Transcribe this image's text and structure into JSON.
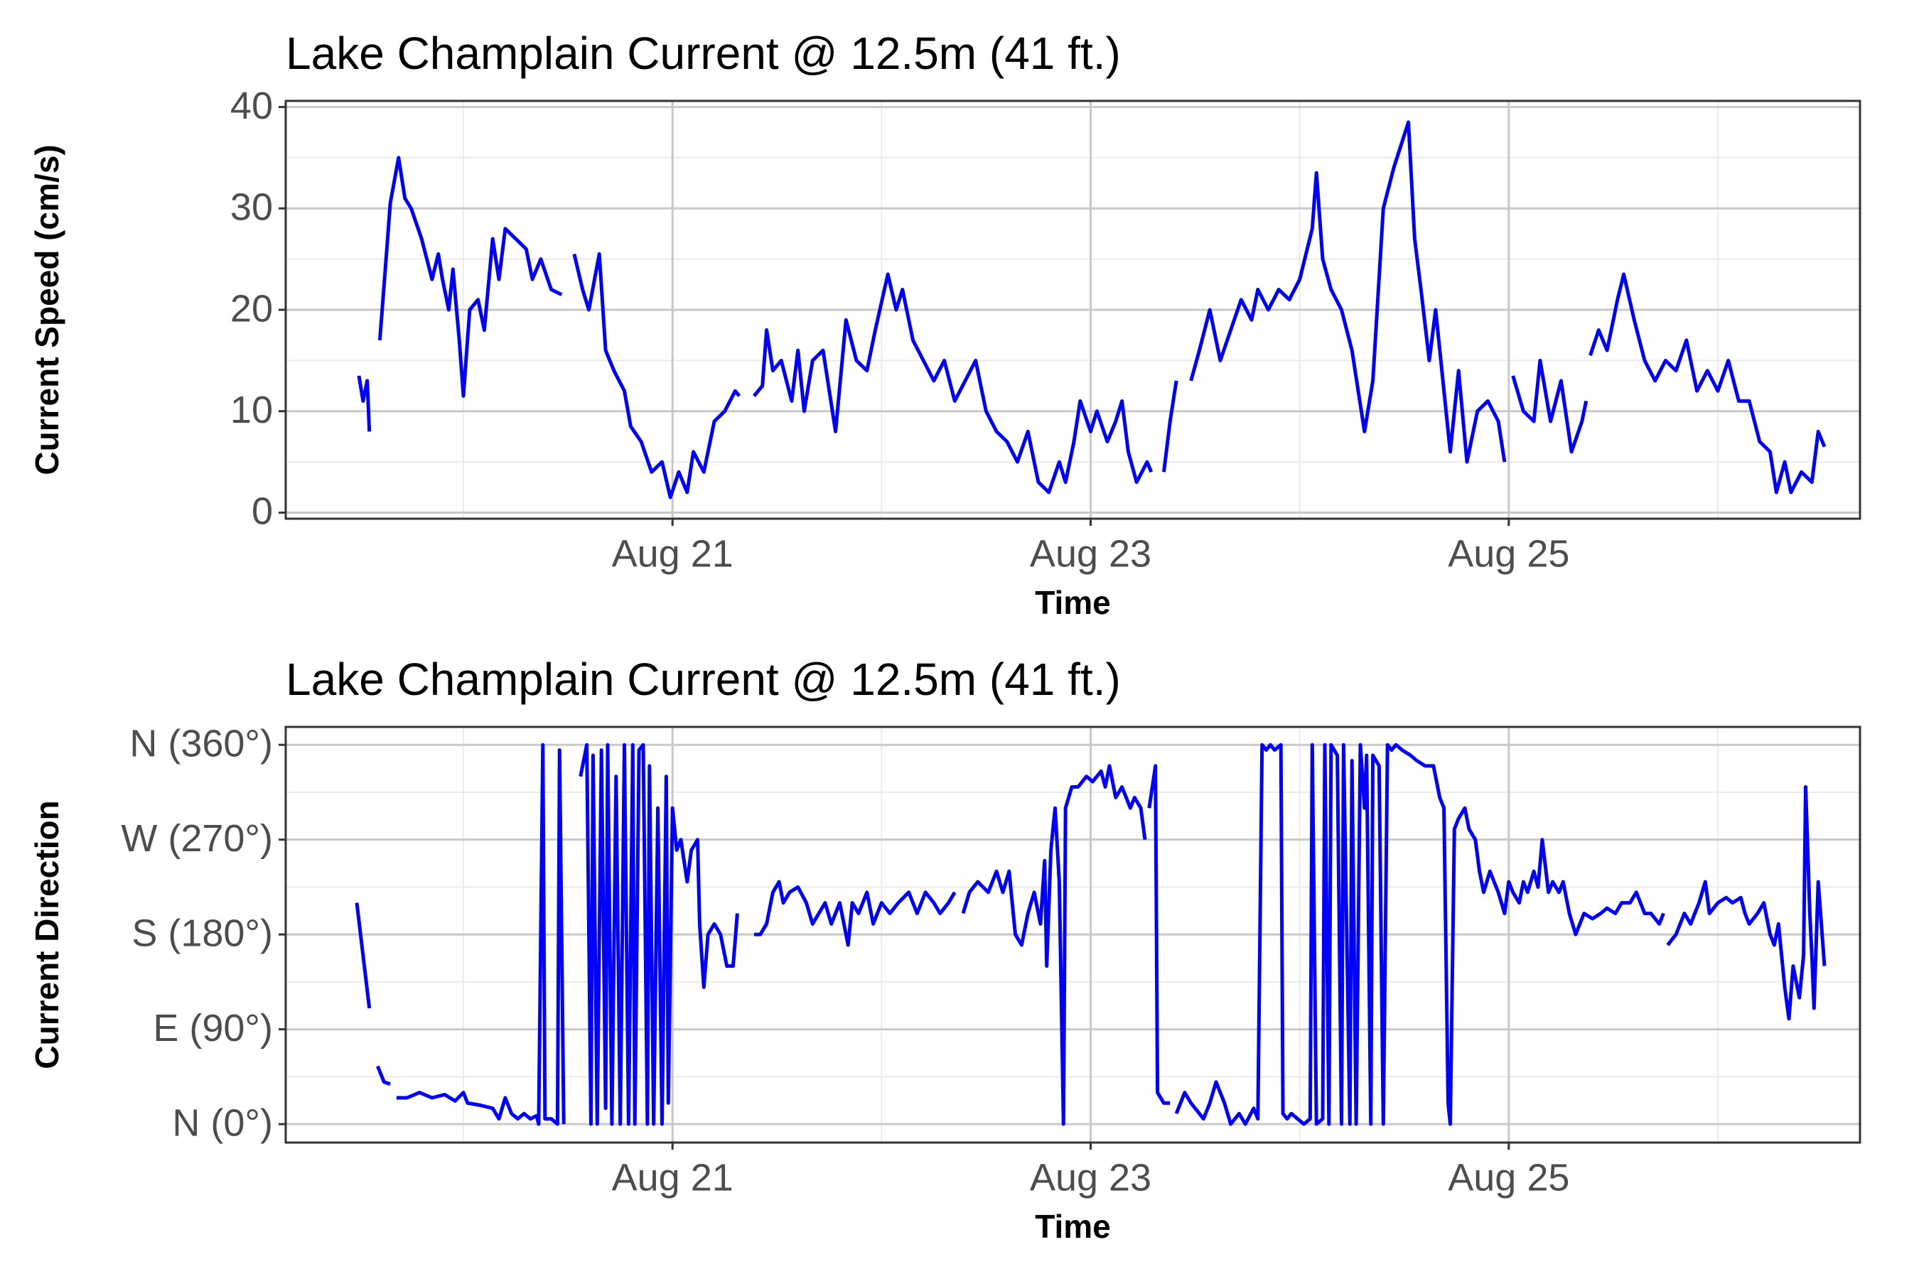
{
  "chart_data": [
    {
      "type": "line",
      "title": "Lake Champlain Current @ 12.5m (41 ft.)",
      "xlabel": "Time",
      "ylabel": "Current Speed (cm/s)",
      "xlim": [
        19.15,
        26.68
      ],
      "xticks": [
        {
          "value": 21,
          "label": "Aug 21"
        },
        {
          "value": 23,
          "label": "Aug 23"
        },
        {
          "value": 25,
          "label": "Aug 25"
        }
      ],
      "xminor": [
        20,
        22,
        24,
        26
      ],
      "ylim": [
        -0.6,
        40.6
      ],
      "yticks": [
        0,
        10,
        20,
        30,
        40
      ],
      "yminor": [
        5,
        15,
        25,
        35
      ],
      "grid": true,
      "x": [
        19.5,
        19.52,
        19.54,
        19.55,
        19.57,
        19.6,
        19.63,
        19.65,
        19.69,
        19.72,
        19.75,
        19.8,
        19.85,
        19.88,
        19.9,
        19.93,
        19.95,
        19.98,
        20.0,
        20.03,
        20.07,
        20.1,
        20.14,
        20.17,
        20.2,
        20.25,
        20.3,
        20.33,
        20.37,
        20.42,
        20.47,
        20.5,
        20.53,
        20.57,
        20.6,
        20.65,
        20.68,
        20.72,
        20.77,
        20.8,
        20.85,
        20.9,
        20.95,
        20.99,
        21.03,
        21.07,
        21.1,
        21.15,
        21.2,
        21.25,
        21.3,
        21.32,
        21.35,
        21.39,
        21.43,
        21.45,
        21.48,
        21.52,
        21.57,
        21.6,
        21.63,
        21.67,
        21.72,
        21.78,
        21.83,
        21.88,
        21.93,
        21.97,
        22.03,
        22.07,
        22.1,
        22.15,
        22.2,
        22.25,
        22.3,
        22.35,
        22.4,
        22.45,
        22.5,
        22.55,
        22.6,
        22.65,
        22.7,
        22.75,
        22.8,
        22.85,
        22.88,
        22.92,
        22.95,
        23.0,
        23.03,
        23.08,
        23.12,
        23.15,
        23.18,
        23.22,
        23.27,
        23.29,
        23.32,
        23.35,
        23.38,
        23.41,
        23.45,
        23.48,
        23.52,
        23.57,
        23.62,
        23.67,
        23.72,
        23.77,
        23.8,
        23.85,
        23.9,
        23.95,
        24.0,
        24.06,
        24.08,
        24.11,
        24.15,
        24.2,
        24.25,
        24.31,
        24.35,
        24.4,
        24.45,
        24.52,
        24.55,
        24.58,
        24.62,
        24.65,
        24.7,
        24.72,
        24.76,
        24.8,
        24.85,
        24.9,
        24.95,
        24.98,
        25.0,
        25.02,
        25.07,
        25.12,
        25.15,
        25.2,
        25.25,
        25.3,
        25.35,
        25.37,
        25.38,
        25.39,
        25.43,
        25.47,
        25.52,
        25.55,
        25.6,
        25.65,
        25.7,
        25.75,
        25.8,
        25.85,
        25.9,
        25.95,
        26.0,
        26.05,
        26.1,
        26.15,
        26.2,
        26.25,
        26.28,
        26.32,
        26.35,
        26.4,
        26.45,
        26.48,
        26.51
      ],
      "series": [
        {
          "name": "Current Speed",
          "color": "#0000ff",
          "values": [
            13.5,
            11,
            13,
            8,
            null,
            17,
            25,
            30.5,
            35,
            31,
            30,
            27,
            23,
            25.5,
            23,
            20,
            24,
            17,
            11.5,
            20,
            21,
            18,
            27,
            23,
            28,
            27,
            26,
            23,
            25,
            22,
            21.5,
            null,
            25.5,
            22,
            20,
            25.5,
            16,
            14,
            12,
            8.5,
            7,
            4,
            5,
            1.5,
            4,
            2,
            6,
            4,
            9,
            10,
            12,
            11.5,
            null,
            11.5,
            12.5,
            18,
            14,
            15,
            11,
            16,
            10,
            15,
            16,
            8,
            19,
            15,
            14,
            18,
            23.5,
            20,
            22,
            17,
            15,
            13,
            15,
            11,
            13,
            15,
            10,
            8,
            7,
            5,
            8,
            3,
            2,
            5,
            3,
            7,
            11,
            8,
            10,
            7,
            9,
            11,
            6,
            3,
            5,
            4,
            null,
            4,
            9,
            13,
            null,
            13,
            16,
            20,
            15,
            18,
            21,
            19,
            22,
            20,
            22,
            21,
            23,
            28,
            33.5,
            25,
            22,
            20,
            16,
            8,
            13,
            30,
            34,
            38.5,
            27,
            22,
            15,
            20,
            10,
            6,
            14,
            5,
            10,
            11,
            9,
            5,
            null,
            13.5,
            10,
            9,
            15,
            9,
            13,
            6,
            9,
            11,
            null,
            15.5,
            18,
            16,
            21,
            23.5,
            19,
            15,
            13,
            15,
            14,
            17,
            12,
            14,
            12,
            15,
            11,
            11,
            7,
            6,
            2,
            5,
            2,
            4,
            3,
            8,
            6.5
          ]
        }
      ]
    },
    {
      "type": "line",
      "title": "Lake Champlain Current @ 12.5m (41 ft.)",
      "xlabel": "Time",
      "ylabel": "Current Direction",
      "xlim": [
        19.15,
        26.68
      ],
      "xticks": [
        {
          "value": 21,
          "label": "Aug 21"
        },
        {
          "value": 23,
          "label": "Aug 23"
        },
        {
          "value": 25,
          "label": "Aug 25"
        }
      ],
      "xminor": [
        20,
        22,
        24,
        26
      ],
      "ylim": [
        -17.5,
        377
      ],
      "yticks": [
        {
          "value": 0,
          "label": "N (0°)"
        },
        {
          "value": 90,
          "label": "E (90°)"
        },
        {
          "value": 180,
          "label": "S (180°)"
        },
        {
          "value": 270,
          "label": "W (270°)"
        },
        {
          "value": 360,
          "label": "N (360°)"
        }
      ],
      "yminor": [
        45,
        135,
        225,
        315
      ],
      "grid": true,
      "x": [
        19.49,
        19.55,
        19.57,
        19.59,
        19.62,
        19.65,
        19.66,
        19.68,
        19.73,
        19.79,
        19.85,
        19.91,
        19.96,
        20.0,
        20.02,
        20.08,
        20.14,
        20.17,
        20.2,
        20.23,
        20.26,
        20.29,
        20.32,
        20.35,
        20.36,
        20.38,
        20.39,
        20.42,
        20.45,
        20.46,
        20.48,
        20.52,
        20.56,
        20.59,
        20.61,
        20.62,
        20.64,
        20.66,
        20.68,
        20.69,
        20.71,
        20.73,
        20.75,
        20.77,
        20.79,
        20.81,
        20.82,
        20.84,
        20.86,
        20.88,
        20.89,
        20.91,
        20.93,
        20.95,
        20.97,
        20.98,
        21.0,
        21.02,
        21.04,
        21.07,
        21.09,
        21.12,
        21.13,
        21.15,
        21.17,
        21.2,
        21.23,
        21.26,
        21.29,
        21.31,
        21.35,
        21.39,
        21.42,
        21.45,
        21.48,
        21.51,
        21.53,
        21.56,
        21.6,
        21.64,
        21.67,
        21.7,
        21.73,
        21.76,
        21.8,
        21.84,
        21.86,
        21.89,
        21.93,
        21.96,
        22.0,
        22.04,
        22.08,
        22.13,
        22.17,
        22.21,
        22.25,
        22.28,
        22.32,
        22.35,
        22.37,
        22.39,
        22.42,
        22.46,
        22.51,
        22.55,
        22.58,
        22.61,
        22.64,
        22.67,
        22.7,
        22.73,
        22.76,
        22.78,
        22.79,
        22.81,
        22.83,
        22.85,
        22.87,
        22.88,
        22.91,
        22.94,
        22.98,
        23.01,
        23.05,
        23.07,
        23.09,
        23.12,
        23.15,
        23.19,
        23.21,
        23.24,
        23.26,
        23.27,
        23.28,
        23.31,
        23.32,
        23.35,
        23.38,
        23.4,
        23.41,
        23.45,
        23.48,
        23.52,
        23.54,
        23.57,
        23.6,
        23.64,
        23.67,
        23.71,
        23.74,
        23.78,
        23.8,
        23.82,
        23.84,
        23.86,
        23.88,
        23.91,
        23.92,
        23.94,
        23.96,
        23.99,
        24.02,
        24.05,
        24.06,
        24.08,
        24.11,
        24.12,
        24.14,
        24.15,
        24.18,
        24.2,
        24.21,
        24.24,
        24.25,
        24.27,
        24.29,
        24.31,
        24.32,
        24.34,
        24.35,
        24.38,
        24.4,
        24.42,
        24.44,
        24.46,
        24.49,
        24.53,
        24.56,
        24.6,
        24.64,
        24.67,
        24.69,
        24.71,
        24.72,
        24.74,
        24.76,
        24.79,
        24.81,
        24.84,
        24.86,
        24.88,
        24.91,
        24.93,
        24.95,
        24.98,
        25.0,
        25.02,
        25.05,
        25.07,
        25.09,
        25.12,
        25.14,
        25.16,
        25.19,
        25.21,
        25.24,
        25.26,
        25.29,
        25.32,
        25.34,
        25.36,
        25.4,
        25.44,
        25.47,
        25.51,
        25.54,
        25.58,
        25.61,
        25.65,
        25.68,
        25.72,
        25.74,
        25.75,
        25.76,
        25.8,
        25.84,
        25.87,
        25.91,
        25.94,
        25.96,
        26.0,
        26.04,
        26.07,
        26.11,
        26.13,
        26.15,
        26.19,
        26.22,
        26.25,
        26.27,
        26.29,
        26.32,
        26.34,
        26.36,
        26.39,
        26.41,
        26.42,
        26.44,
        26.45,
        26.46,
        26.48,
        26.51
      ],
      "series": [
        {
          "name": "Current Direction",
          "color": "#0000ff",
          "values": [
            210,
            110,
            null,
            55,
            40,
            38,
            null,
            25,
            25,
            30,
            25,
            28,
            22,
            30,
            20,
            18,
            15,
            5,
            25,
            10,
            5,
            10,
            5,
            8,
            0,
            360,
            5,
            5,
            0,
            355,
            0,
            null,
            330,
            360,
            0,
            350,
            0,
            355,
            15,
            360,
            0,
            330,
            0,
            360,
            0,
            360,
            0,
            355,
            360,
            0,
            340,
            0,
            300,
            0,
            330,
            20,
            300,
            260,
            270,
            230,
            260,
            270,
            190,
            130,
            180,
            190,
            180,
            150,
            150,
            200,
            null,
            180,
            180,
            190,
            220,
            230,
            210,
            220,
            225,
            210,
            190,
            200,
            210,
            190,
            210,
            170,
            210,
            200,
            220,
            190,
            210,
            200,
            210,
            220,
            200,
            220,
            210,
            200,
            210,
            220,
            null,
            200,
            220,
            230,
            220,
            240,
            220,
            240,
            180,
            170,
            200,
            220,
            190,
            250,
            150,
            260,
            300,
            230,
            0,
            300,
            320,
            320,
            330,
            325,
            335,
            320,
            340,
            310,
            320,
            300,
            310,
            300,
            270,
            null,
            300,
            340,
            30,
            20,
            20,
            null,
            10,
            30,
            20,
            10,
            5,
            20,
            40,
            20,
            0,
            10,
            0,
            15,
            5,
            360,
            355,
            360,
            355,
            360,
            10,
            5,
            10,
            5,
            0,
            5,
            360,
            0,
            5,
            360,
            0,
            360,
            350,
            0,
            360,
            0,
            345,
            0,
            360,
            300,
            350,
            0,
            350,
            340,
            0,
            360,
            355,
            360,
            355,
            350,
            345,
            340,
            340,
            310,
            300,
            20,
            0,
            280,
            290,
            300,
            280,
            270,
            240,
            220,
            240,
            230,
            220,
            200,
            230,
            220,
            210,
            230,
            220,
            240,
            225,
            270,
            220,
            230,
            220,
            230,
            200,
            180,
            190,
            200,
            195,
            200,
            205,
            200,
            210,
            210,
            220,
            200,
            200,
            190,
            200,
            null,
            170,
            180,
            200,
            190,
            210,
            230,
            200,
            210,
            215,
            210,
            215,
            200,
            190,
            200,
            210,
            180,
            170,
            190,
            130,
            100,
            150,
            120,
            160,
            320,
            200,
            160,
            110,
            230,
            150
          ]
        }
      ]
    }
  ]
}
